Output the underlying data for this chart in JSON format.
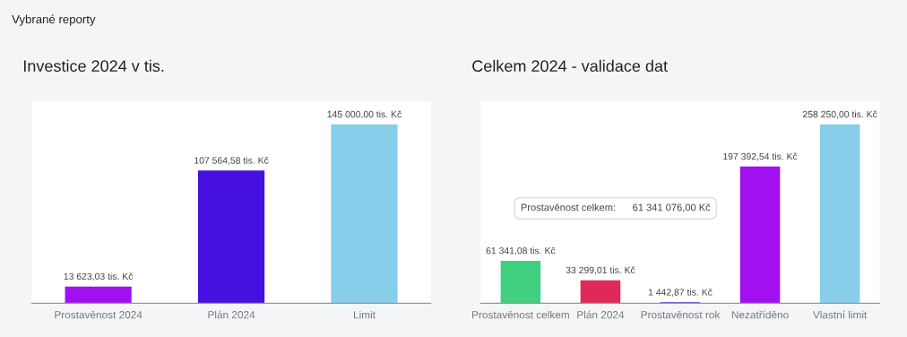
{
  "chart_data": [
    {
      "type": "bar",
      "title": "Investice 2024 v tis.",
      "annotations": [
        "Vybrané reporty"
      ],
      "categories": [
        "Prostavěnost 2024",
        "Plán 2024",
        "Limit"
      ],
      "values": [
        13623.03,
        107564.58,
        145000.0
      ],
      "colors": [
        "#a20ff0",
        "#4510e0",
        "#87ceeb"
      ],
      "value_labels": [
        "13 623,03 tis. Kč",
        "107 564,58 tis. Kč",
        "145 000,00 tis. Kč"
      ],
      "tick_labels": "x",
      "grid": false,
      "legend": false
    },
    {
      "type": "bar",
      "title": "Celkem 2024 - validace dat",
      "annotations": [
        "Prostavěnost celkem:      61 341 076,00 Kč"
      ],
      "categories": [
        "Prostavěnost celkem",
        "Plán 2024",
        "Prostavěnost rok",
        "Nezatříděno",
        "Vlastní limit"
      ],
      "values": [
        61341.08,
        33299.01,
        1442.87,
        197392.54,
        258250.0
      ],
      "colors": [
        "#40d080",
        "#e0285a",
        "#4510e0",
        "#a20ff0",
        "#87ceeb"
      ],
      "value_labels": [
        "61 341,08 tis. Kč",
        "33 299,01 tis. Kč",
        "1 442,87 tis. Kč",
        "197 392,54 tis. Kč",
        "258 250,00 tis. Kč"
      ],
      "tick_labels": "x",
      "grid": false,
      "legend": false
    }
  ]
}
